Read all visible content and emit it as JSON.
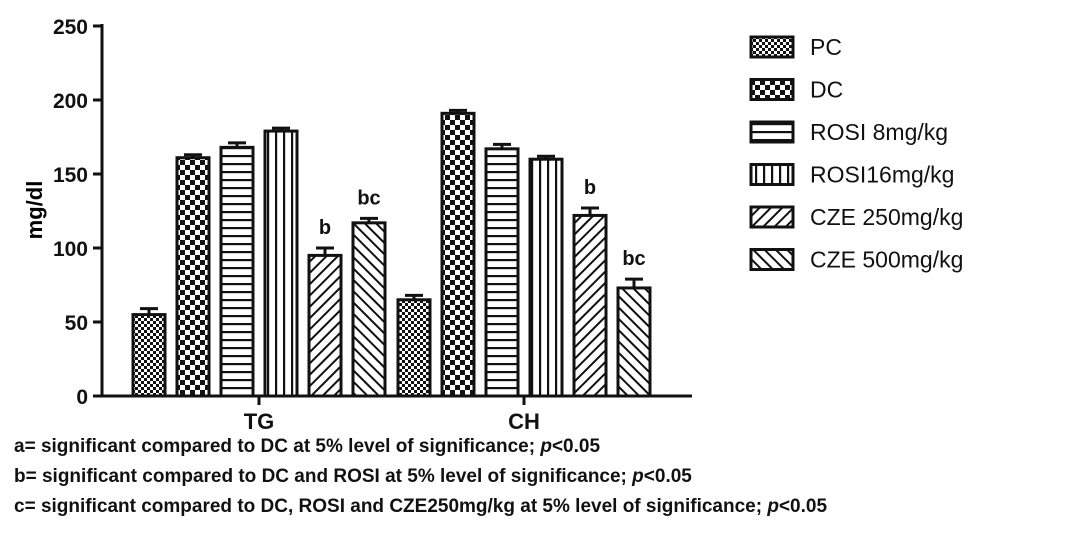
{
  "chart_data": {
    "type": "bar",
    "title": "",
    "xlabel": "",
    "ylabel": "mg/dl",
    "ylim": [
      0,
      250
    ],
    "yticks": [
      0,
      50,
      100,
      150,
      200,
      250
    ],
    "grid": false,
    "legend_position": "right",
    "categories": [
      "TG",
      "CH"
    ],
    "series": [
      {
        "name": "PC",
        "values": [
          55,
          65
        ],
        "errors": [
          4,
          3
        ],
        "annotations": [
          "",
          ""
        ],
        "pattern": "checker-fine"
      },
      {
        "name": "DC",
        "values": [
          161,
          191
        ],
        "errors": [
          2,
          2
        ],
        "annotations": [
          "",
          ""
        ],
        "pattern": "checker-coarse"
      },
      {
        "name": "ROSI 8mg/kg",
        "values": [
          168,
          167
        ],
        "errors": [
          3,
          3
        ],
        "annotations": [
          "",
          ""
        ],
        "pattern": "horizontal-lines"
      },
      {
        "name": "ROSI16mg/kg",
        "values": [
          179,
          160
        ],
        "errors": [
          2,
          2
        ],
        "annotations": [
          "",
          ""
        ],
        "pattern": "vertical-lines"
      },
      {
        "name": "CZE 250mg/kg",
        "values": [
          95,
          122
        ],
        "errors": [
          5,
          5
        ],
        "annotations": [
          "b",
          "b"
        ],
        "pattern": "diagonal-right"
      },
      {
        "name": "CZE 500mg/kg",
        "values": [
          117,
          73
        ],
        "errors": [
          3,
          6
        ],
        "annotations": [
          "bc",
          "bc"
        ],
        "pattern": "diagonal-left"
      }
    ]
  },
  "footnotes": [
    {
      "prefix": "a= significant compared to DC at 5% level of significance; ",
      "p": "p",
      "suffix": "<0.05"
    },
    {
      "prefix": "b= significant compared to DC and ROSI at 5% level of significance; ",
      "p": "p",
      "suffix": "<0.05"
    },
    {
      "prefix": "c= significant compared to DC, ROSI and CZE250mg/kg at 5% level of significance; ",
      "p": "p",
      "suffix": "<0.05"
    }
  ]
}
